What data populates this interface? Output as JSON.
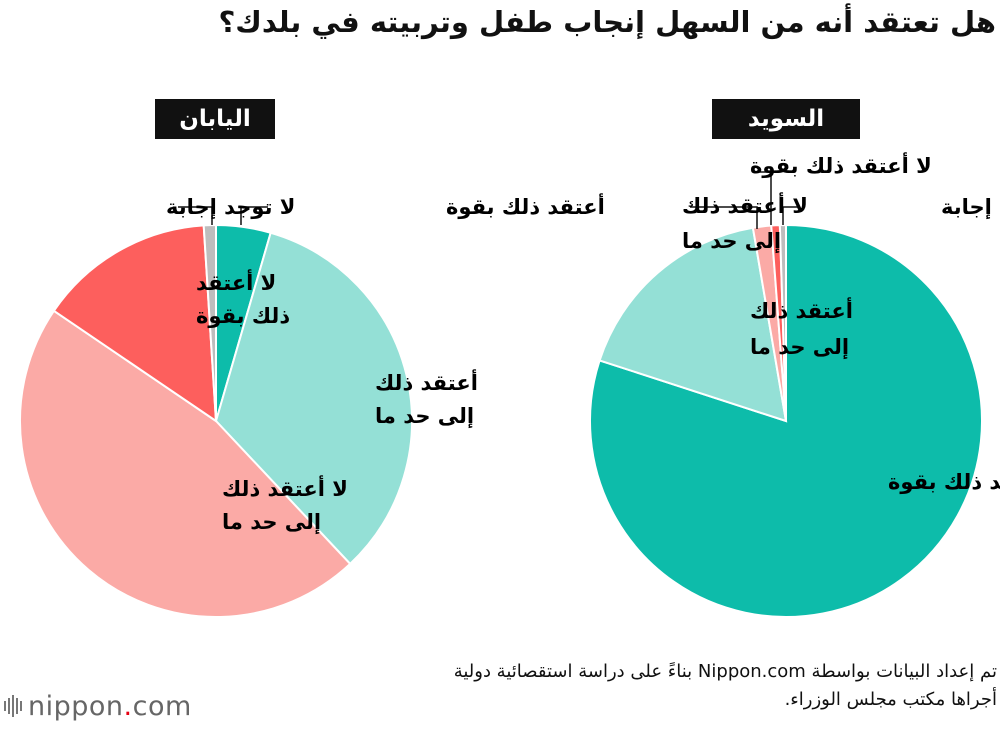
{
  "title": "هل تعتقد أنه من السهل إنجاب طفل وتربيته في بلدك؟",
  "footer": {
    "line1": "تم إعداد البيانات بواسطة Nippon.com بناءً على دراسة استقصائية دولية",
    "line2": "أجراها مكتب مجلس الوزراء."
  },
  "logo": {
    "name": "nippon",
    "dot": ".",
    "suffix": "com"
  },
  "colors": {
    "strong_yes": "#0dbcaa",
    "somewhat_yes": "#94e0d6",
    "somewhat_no": "#fbaaa6",
    "strong_no": "#fd5f5d",
    "no_answer": "#bdbdbd",
    "badge_bg": "#111111"
  },
  "chart_data": [
    {
      "type": "pie",
      "title": "اليابان",
      "slices": [
        {
          "name": "أعتقد ذلك بقوة",
          "value": 4.5,
          "color_key": "strong_yes"
        },
        {
          "name": "أعتقد ذلك إلى حد ما",
          "value": 33.5,
          "color_key": "somewhat_yes"
        },
        {
          "name": "لا أعتقد ذلك إلى حد ما",
          "value": 46.5,
          "color_key": "somewhat_no"
        },
        {
          "name": "لا أعتقد ذلك بقوة",
          "value": 14.5,
          "color_key": "strong_no"
        },
        {
          "name": "لا توجد إجابة",
          "value": 1.0,
          "color_key": "no_answer"
        }
      ],
      "labels": {
        "strong_yes": "أعتقد ذلك بقوة",
        "somewhat_yes": [
          "أعتقد ذلك",
          "إلى حد ما"
        ],
        "somewhat_no": [
          "لا أعتقد ذلك",
          "إلى حد ما"
        ],
        "strong_no": [
          "لا أعتقد",
          "ذلك بقوة"
        ],
        "no_answer": "لا توجد إجابة"
      }
    },
    {
      "type": "pie",
      "title": "السويد",
      "slices": [
        {
          "name": "أعتقد ذلك بقوة",
          "value": 80.0,
          "color_key": "strong_yes"
        },
        {
          "name": "أعتقد ذلك إلى حد ما",
          "value": 17.3,
          "color_key": "somewhat_yes"
        },
        {
          "name": "لا أعتقد ذلك إلى حد ما",
          "value": 1.5,
          "color_key": "somewhat_no"
        },
        {
          "name": "لا أعتقد ذلك بقوة",
          "value": 0.7,
          "color_key": "strong_no"
        },
        {
          "name": "لا توجد إجابة",
          "value": 0.5,
          "color_key": "no_answer"
        }
      ],
      "labels": {
        "strong_yes": "أعتقد ذلك بقوة",
        "somewhat_yes": [
          "أعتقد ذلك",
          "إلى حد ما"
        ],
        "somewhat_no": [
          "لا أعتقد ذلك",
          "إلى حد ما"
        ],
        "strong_no": "لا أعتقد ذلك بقوة",
        "no_answer": "لا توجد إجابة"
      }
    }
  ]
}
